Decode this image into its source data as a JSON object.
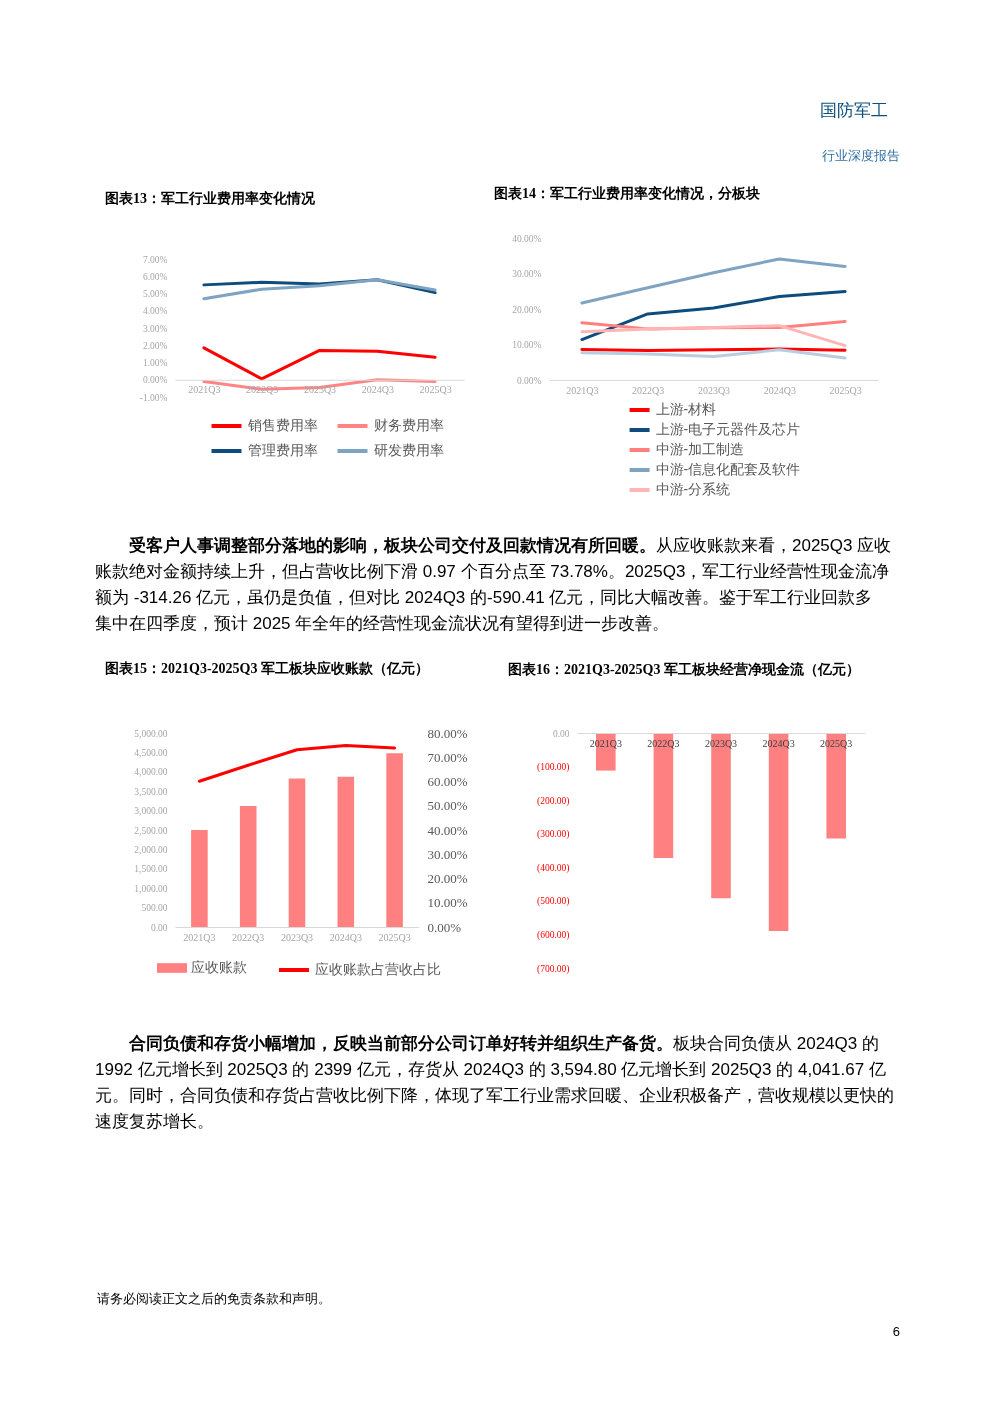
{
  "chart_data": [
    {
      "type": "other",
      "annotations": [
        "国防军工",
        "行业深度报告"
      ]
    },
    {
      "type": "line",
      "title": "图表13：军工行业费用率变化情况",
      "categories": [
        "2021Q3",
        "2022Q3",
        "2023Q3",
        "2024Q3",
        "2025Q3"
      ],
      "series": [
        {
          "name": "销售费用率",
          "color": "#ff0000",
          "values": [
            1.85,
            0.05,
            1.7,
            1.65,
            1.3
          ]
        },
        {
          "name": "管理费用率",
          "color": "#0e4c7e",
          "values": [
            5.5,
            5.65,
            5.55,
            5.8,
            5.05
          ]
        },
        {
          "name": "财务费用率",
          "color": "#ff8585",
          "values": [
            -0.1,
            -0.55,
            -0.45,
            0.0,
            -0.1
          ]
        },
        {
          "name": "研发费用率",
          "color": "#7fa4c2",
          "values": [
            4.7,
            5.25,
            5.45,
            5.8,
            5.2
          ]
        }
      ],
      "ylim": [
        -1,
        7
      ],
      "yticks": [
        {
          "value": -1,
          "label": "-1.00%"
        },
        {
          "value": 0,
          "label": "0.00%"
        },
        {
          "value": 1,
          "label": "1.00%"
        },
        {
          "value": 2,
          "label": "2.00%"
        },
        {
          "value": 3,
          "label": "3.00%"
        },
        {
          "value": 4,
          "label": "4.00%"
        },
        {
          "value": 5,
          "label": "5.00%"
        },
        {
          "value": 6,
          "label": "6.00%"
        },
        {
          "value": 7,
          "label": "7.00%"
        }
      ],
      "grid": false,
      "legend": "bottom"
    },
    {
      "type": "line",
      "title": "图表14：军工行业费用率变化情况，分板块",
      "categories": [
        "2021Q3",
        "2022Q3",
        "2023Q3",
        "2024Q3",
        "2025Q3"
      ],
      "series": [
        {
          "name": "上游-材料",
          "color": "#ff0000",
          "values": [
            8.6,
            8.3,
            8.5,
            8.7,
            8.4
          ]
        },
        {
          "name": "上游-电子元器件及芯片",
          "color": "#0e4c7e",
          "values": [
            11.4,
            18.6,
            20.3,
            23.5,
            24.9
          ]
        },
        {
          "name": "中游-加工制造",
          "color": "#ff7f7f",
          "values": [
            16.1,
            14.4,
            14.7,
            14.8,
            16.5
          ]
        },
        {
          "name": "中游-信息化配套及软件",
          "color": "#7fa4c2",
          "values": [
            21.7,
            26.0,
            30.2,
            34.1,
            32.0
          ]
        },
        {
          "name": "中游-分系统",
          "color": "#ffb5b5",
          "values": [
            13.6,
            14.4,
            14.8,
            15.3,
            9.7
          ]
        },
        {
          "color": "#b8cde0",
          "values": [
            7.7,
            7.3,
            6.6,
            8.5,
            6.2
          ]
        }
      ],
      "ylim": [
        0,
        40
      ],
      "yticks": [
        {
          "value": 0,
          "label": "0.00%"
        },
        {
          "value": 10,
          "label": "10.00%"
        },
        {
          "value": 20,
          "label": "20.00%"
        },
        {
          "value": 30,
          "label": "30.00%"
        },
        {
          "value": 40,
          "label": "40.00%"
        }
      ],
      "grid": false,
      "legend": "bottom"
    },
    {
      "type": "other",
      "title": "受客户人事调整部分落地的影响，板块公司交付及回款情况有所回暖。",
      "annotations": [
        "从应收账款来看，2025Q3 应收账款绝对金额持续上升，但占营收比例下滑 0.97 个百分点至 73.78%。2025Q3，军工行业经营性现金流净额为 -314.26 亿元，虽仍是负值，但对比 2024Q3 的-590.41 亿元，同比大幅改善。鉴于军工行业回款多集中在四季度，预计 2025 年全年的经营性现金流状况有望得到进一步改善。"
      ]
    },
    {
      "type": "bar",
      "title": "图表15：2021Q3-2025Q3 军工板块应收账款（亿元）",
      "categories": [
        "2021Q3",
        "2022Q3",
        "2023Q3",
        "2024Q3",
        "2025Q3"
      ],
      "series": [
        {
          "name": "应收账款",
          "type": "bar",
          "color": "#ff8080",
          "values": [
            2500,
            3120,
            3830,
            3870,
            4480
          ]
        },
        {
          "name": "应收账款占营收占比",
          "type": "line",
          "axis": "y2",
          "color": "#ff0000",
          "values": [
            60.1,
            66.7,
            73.1,
            74.8,
            73.8
          ]
        }
      ],
      "ylim": [
        0,
        5000
      ],
      "yticks": [
        {
          "value": 0,
          "label": "0.00"
        },
        {
          "value": 500,
          "label": "500.00"
        },
        {
          "value": 1000,
          "label": "1,000.00"
        },
        {
          "value": 1500,
          "label": "1,500.00"
        },
        {
          "value": 2000,
          "label": "2,000.00"
        },
        {
          "value": 2500,
          "label": "2,500.00"
        },
        {
          "value": 3000,
          "label": "3,000.00"
        },
        {
          "value": 3500,
          "label": "3,500.00"
        },
        {
          "value": 4000,
          "label": "4,000.00"
        },
        {
          "value": 4500,
          "label": "4,500.00"
        },
        {
          "value": 5000,
          "label": "5,000.00"
        }
      ],
      "y2lim": [
        0,
        80
      ],
      "y2ticks": [
        {
          "value": 0,
          "label": "0.00%"
        },
        {
          "value": 10,
          "label": "10.00%"
        },
        {
          "value": 20,
          "label": "20.00%"
        },
        {
          "value": 30,
          "label": "30.00%"
        },
        {
          "value": 40,
          "label": "40.00%"
        },
        {
          "value": 50,
          "label": "50.00%"
        },
        {
          "value": 60,
          "label": "60.00%"
        },
        {
          "value": 70,
          "label": "70.00%"
        },
        {
          "value": 80,
          "label": "80.00%"
        }
      ],
      "grid": false,
      "legend": "bottom"
    },
    {
      "type": "bar",
      "title": "图表16：2021Q3-2025Q3 军工板块经营净现金流（亿元）",
      "categories": [
        "2021Q3",
        "2022Q3",
        "2023Q3",
        "2024Q3",
        "2025Q3"
      ],
      "values": [
        -112,
        -372,
        -492,
        -590,
        -314
      ],
      "color": "#ff8080",
      "ylim": [
        -700,
        0
      ],
      "yticks": [
        {
          "value": -700,
          "label": "(700.00)"
        },
        {
          "value": -600,
          "label": "(600.00)"
        },
        {
          "value": -500,
          "label": "(500.00)"
        },
        {
          "value": -400,
          "label": "(400.00)"
        },
        {
          "value": -300,
          "label": "(300.00)"
        },
        {
          "value": -200,
          "label": "(200.00)"
        },
        {
          "value": -100,
          "label": "(100.00)"
        },
        {
          "value": 0,
          "label": "0.00"
        }
      ],
      "grid": false
    },
    {
      "type": "other",
      "title": "合同负债和存货小幅增加，反映当前部分公司订单好转并组织生产备货。",
      "annotations": [
        "板块合同负债从 2024Q3 的 1992 亿元增长到 2025Q3 的 2399 亿元，存货从 2024Q3 的 3,594.80 亿元增长到 2025Q3 的 4,041.67 亿元。同时，合同负债和存货占营收比例下降，体现了军工行业需求回暖、企业积极备产，营收规模以更快的速度复苏增长。"
      ]
    },
    {
      "type": "other",
      "annotations": [
        "请务必阅读正文之后的免责条款和声明。",
        "6"
      ]
    }
  ]
}
